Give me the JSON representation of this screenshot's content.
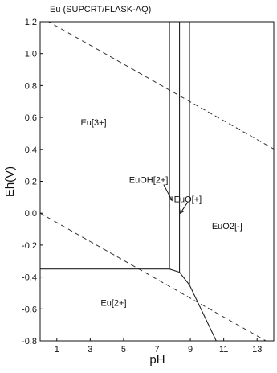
{
  "title": "Eu (SUPCRT/FLASK-AQ)",
  "chart_data": {
    "type": "pourbaix",
    "title": "Eu (SUPCRT/FLASK-AQ)",
    "xlabel": "pH",
    "ylabel": "Eh(V)",
    "xlim": [
      0,
      14
    ],
    "ylim": [
      -0.8,
      1.2
    ],
    "x_ticks": [
      {
        "value": 1,
        "label": "1"
      },
      {
        "value": 3,
        "label": "3"
      },
      {
        "value": 5,
        "label": "5"
      },
      {
        "value": 7,
        "label": "7"
      },
      {
        "value": 9,
        "label": "9"
      },
      {
        "value": 11,
        "label": "11"
      },
      {
        "value": 13,
        "label": "13"
      }
    ],
    "y_ticks": [
      {
        "value": 1.2,
        "label": "1.2"
      },
      {
        "value": 1.0,
        "label": "1.0"
      },
      {
        "value": 0.8,
        "label": "0.8"
      },
      {
        "value": 0.6,
        "label": "0.6"
      },
      {
        "value": 0.4,
        "label": "0.4"
      },
      {
        "value": 0.2,
        "label": "0.2"
      },
      {
        "value": 0.0,
        "label": "0.0"
      },
      {
        "value": -0.2,
        "label": "-0.2"
      },
      {
        "value": -0.4,
        "label": "-0.4"
      },
      {
        "value": -0.6,
        "label": "-0.6"
      },
      {
        "value": -0.8,
        "label": "-0.8"
      }
    ],
    "fields": [
      {
        "name": "Eu[3+]",
        "ph": 3.2,
        "eh": 0.55
      },
      {
        "name": "EuOH[2+]",
        "ph": 6.5,
        "eh": 0.19
      },
      {
        "name": "EuO[+]",
        "ph": 8.85,
        "eh": 0.07
      },
      {
        "name": "EuO2[-]",
        "ph": 11.2,
        "eh": -0.1
      },
      {
        "name": "Eu[2+]",
        "ph": 4.4,
        "eh": -0.58
      }
    ],
    "pointers": [
      {
        "from": [
          7.4,
          0.18
        ],
        "to": [
          7.9,
          0.08
        ]
      },
      {
        "from": [
          8.85,
          0.07
        ],
        "to": [
          8.4,
          0.0
        ]
      }
    ],
    "boundaries": [
      {
        "name": "Eu3+/Eu2+",
        "points": [
          [
            0,
            -0.35
          ],
          [
            7.75,
            -0.35
          ]
        ]
      },
      {
        "name": "Eu3+/EuOH2+",
        "points": [
          [
            7.75,
            1.2
          ],
          [
            7.75,
            -0.35
          ]
        ]
      },
      {
        "name": "EuOH2+/EuO+",
        "points": [
          [
            8.35,
            1.2
          ],
          [
            8.35,
            -0.37
          ]
        ]
      },
      {
        "name": "EuO+/EuO2-",
        "points": [
          [
            8.95,
            1.2
          ],
          [
            8.95,
            -0.45
          ]
        ]
      },
      {
        "name": "EuOH2+/Eu2+",
        "points": [
          [
            7.75,
            -0.35
          ],
          [
            8.35,
            -0.37
          ]
        ]
      },
      {
        "name": "EuO+/Eu2+",
        "points": [
          [
            8.35,
            -0.37
          ],
          [
            8.95,
            -0.45
          ]
        ]
      },
      {
        "name": "EuO2-/Eu2+",
        "points": [
          [
            8.95,
            -0.45
          ],
          [
            10.55,
            -0.8
          ]
        ]
      }
    ],
    "water_lines": [
      {
        "name": "O2/H2O",
        "points": [
          [
            0,
            1.23
          ],
          [
            14,
            0.402
          ]
        ]
      },
      {
        "name": "H2O/H2",
        "points": [
          [
            0,
            0.0
          ],
          [
            14,
            -0.828
          ]
        ]
      }
    ],
    "colors": {
      "ink": "#111111",
      "water_line": "#333333"
    }
  }
}
